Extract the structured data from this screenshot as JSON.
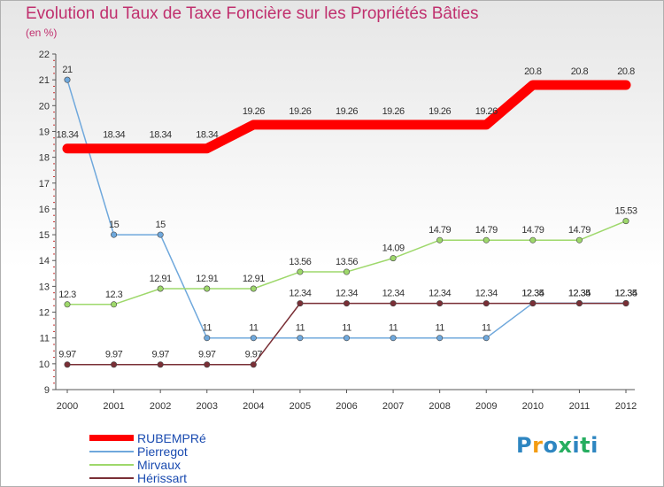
{
  "chart_data": {
    "type": "line",
    "title": "Evolution du Taux de Taxe Foncière sur les Propriétés Bâties",
    "subtitle": "(en %)",
    "xlabel": "",
    "ylabel": "",
    "ylim": [
      9,
      22
    ],
    "yticks": [
      "9",
      "10",
      "11",
      "12",
      "13",
      "14",
      "15",
      "16",
      "17",
      "18",
      "19",
      "20",
      "21",
      "22"
    ],
    "categories": [
      "2000",
      "2001",
      "2002",
      "2003",
      "2004",
      "2005",
      "2006",
      "2007",
      "2008",
      "2009",
      "2010",
      "2011",
      "2012"
    ],
    "series": [
      {
        "name": "RUBEMPRé",
        "color": "#ff0000",
        "values": [
          18.34,
          18.34,
          18.34,
          18.34,
          19.26,
          19.26,
          19.26,
          19.26,
          19.26,
          19.26,
          20.8,
          20.8,
          20.8
        ],
        "labels": [
          "18.34",
          "18.34",
          "18.34",
          "18.34",
          "19.26",
          "19.26",
          "19.26",
          "19.26",
          "19.26",
          "19.26",
          "20.8",
          "20.8",
          "20.8"
        ]
      },
      {
        "name": "Pierregot",
        "color": "#6fa8dc",
        "values": [
          21,
          15,
          15,
          11,
          11,
          11,
          11,
          11,
          11,
          11,
          12.35,
          12.35,
          12.35
        ],
        "labels": [
          "21",
          "15",
          "15",
          "11",
          "11",
          "11",
          "11",
          "11",
          "11",
          "11",
          "12.35",
          "12.35",
          "12.35"
        ]
      },
      {
        "name": "Mirvaux",
        "color": "#9ed86b",
        "values": [
          12.3,
          12.3,
          12.91,
          12.91,
          12.91,
          13.56,
          13.56,
          14.09,
          14.79,
          14.79,
          14.79,
          14.79,
          15.53
        ],
        "labels": [
          "12.3",
          "12.3",
          "12.91",
          "12.91",
          "12.91",
          "13.56",
          "13.56",
          "14.09",
          "14.79",
          "14.79",
          "14.79",
          "14.79",
          "15.53"
        ]
      },
      {
        "name": "Hérissart",
        "color": "#7a2f36",
        "values": [
          9.97,
          9.97,
          9.97,
          9.97,
          9.97,
          12.34,
          12.34,
          12.34,
          12.34,
          12.34,
          12.34,
          12.34,
          12.34
        ],
        "labels": [
          "9.97",
          "9.97",
          "9.97",
          "9.97",
          "9.97",
          "12.34",
          "12.34",
          "12.34",
          "12.34",
          "12.34",
          "12.34",
          "12.34",
          "12.34"
        ]
      }
    ],
    "legend_position": "bottom-left",
    "grid": false
  },
  "logo": {
    "letters": [
      "P",
      "r",
      "o",
      "x",
      "i",
      "t",
      "i"
    ],
    "colors": [
      "#2e86c1",
      "#f39c12",
      "#2e86c1",
      "#27ae60",
      "#2e86c1",
      "#27ae60",
      "#2e86c1"
    ]
  }
}
